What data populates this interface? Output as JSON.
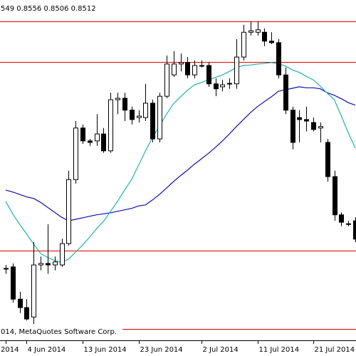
{
  "chart_data": {
    "type": "candlestick",
    "header": "549 0.8556 0.8506 0.8512",
    "footer": "014, MetaQuotes Software Corp.",
    "categories": [
      "2014",
      null,
      null,
      "4 Jun 2014",
      null,
      null,
      null,
      null,
      null,
      null,
      null,
      "13 Jun 2014",
      null,
      null,
      null,
      null,
      null,
      null,
      null,
      "23 Jun 2014",
      null,
      null,
      null,
      null,
      null,
      null,
      null,
      null,
      "2 Jul 2014",
      null,
      null,
      null,
      null,
      null,
      null,
      null,
      "11 Jul 2014",
      null,
      null,
      null,
      null,
      null,
      null,
      null,
      "21 Jul 2014",
      null,
      null,
      null,
      null,
      null,
      null
    ],
    "open": [
      0.8453,
      0.8456,
      0.8391,
      0.8374,
      0.8355,
      0.846,
      0.8463,
      0.846,
      0.846,
      0.8503,
      0.8632,
      0.8736,
      0.871,
      0.871,
      0.8724,
      0.869,
      0.8793,
      0.8796,
      0.8772,
      0.8757,
      0.8757,
      0.8786,
      0.8714,
      0.88,
      0.8843,
      0.8865,
      0.8868,
      0.8843,
      0.8862,
      0.8862,
      0.8825,
      0.8819,
      0.8825,
      0.8825,
      0.8879,
      0.8929,
      0.8929,
      0.8929,
      0.8911,
      0.8908,
      0.8843,
      0.8772,
      0.8757,
      0.8753,
      0.8747,
      0.8736,
      0.8707,
      0.8638,
      0.8561,
      0.8543,
      0.8549
    ],
    "high": [
      0.846,
      0.8463,
      0.8406,
      0.8391,
      0.8506,
      0.8477,
      0.8542,
      0.8477,
      0.8513,
      0.865,
      0.875,
      0.8743,
      0.8714,
      0.8764,
      0.8736,
      0.8807,
      0.8807,
      0.8807,
      0.8779,
      0.8772,
      0.8825,
      0.8793,
      0.8807,
      0.8882,
      0.8891,
      0.8886,
      0.8879,
      0.8872,
      0.8872,
      0.8868,
      0.8836,
      0.8833,
      0.8836,
      0.8915,
      0.8944,
      0.8951,
      0.8951,
      0.8937,
      0.8929,
      0.8915,
      0.8858,
      0.8779,
      0.8772,
      0.8779,
      0.8757,
      0.8747,
      0.8714,
      0.865,
      0.8566,
      0.8549,
      0.8556
    ],
    "low": [
      0.8442,
      0.8384,
      0.8363,
      0.8348,
      0.8341,
      0.8449,
      0.8442,
      0.8449,
      0.8456,
      0.8499,
      0.8624,
      0.8704,
      0.87,
      0.87,
      0.8686,
      0.8686,
      0.8764,
      0.875,
      0.8743,
      0.8747,
      0.875,
      0.8707,
      0.8707,
      0.8796,
      0.8839,
      0.885,
      0.8836,
      0.8836,
      0.8858,
      0.8819,
      0.88,
      0.881,
      0.8815,
      0.8815,
      0.8872,
      0.8922,
      0.8922,
      0.8901,
      0.8905,
      0.8836,
      0.8764,
      0.8693,
      0.8707,
      0.8729,
      0.8729,
      0.8707,
      0.8628,
      0.8549,
      0.8538,
      0.8538,
      0.8506
    ],
    "close": [
      0.8452,
      0.8391,
      0.8374,
      0.8351,
      0.846,
      0.8463,
      0.846,
      0.8466,
      0.8503,
      0.8632,
      0.8736,
      0.871,
      0.8707,
      0.8724,
      0.869,
      0.8793,
      0.8796,
      0.8772,
      0.8753,
      0.876,
      0.8786,
      0.8714,
      0.88,
      0.8865,
      0.8865,
      0.8868,
      0.8843,
      0.8862,
      0.8861,
      0.8825,
      0.8815,
      0.8823,
      0.8826,
      0.8879,
      0.8929,
      0.8932,
      0.8934,
      0.8911,
      0.8908,
      0.8843,
      0.8772,
      0.8707,
      0.8753,
      0.875,
      0.8733,
      0.8739,
      0.8638,
      0.8561,
      0.8546,
      0.8542,
      0.8512
    ],
    "bull_color": "#ffffff",
    "bear_color": "#000000",
    "series": [
      {
        "color": "#1010b0",
        "values": [
          0.8611,
          0.8607,
          0.8602,
          0.8597,
          0.8594,
          0.8586,
          0.8576,
          0.8566,
          0.8556,
          0.8549,
          0.8552,
          0.8555,
          0.8558,
          0.8561,
          0.8563,
          0.8565,
          0.8568,
          0.8571,
          0.8574,
          0.8579,
          0.8581,
          0.8591,
          0.8602,
          0.8615,
          0.8628,
          0.864,
          0.8651,
          0.8663,
          0.8674,
          0.8685,
          0.8697,
          0.871,
          0.8724,
          0.8739,
          0.8753,
          0.8767,
          0.8779,
          0.8789,
          0.8799,
          0.881,
          0.8813,
          0.8816,
          0.8819,
          0.8817,
          0.8817,
          0.8815,
          0.8807,
          0.8802,
          0.8795,
          0.8787,
          0.8782
        ]
      },
      {
        "color": "#20b2aa",
        "values": [
          0.8588,
          0.8563,
          0.8542,
          0.8522,
          0.8502,
          0.8483,
          0.8475,
          0.8469,
          0.8465,
          0.8472,
          0.8486,
          0.85,
          0.8516,
          0.8533,
          0.8548,
          0.8568,
          0.8588,
          0.8611,
          0.8632,
          0.8661,
          0.869,
          0.8717,
          0.874,
          0.8764,
          0.8785,
          0.8799,
          0.8812,
          0.8823,
          0.8828,
          0.8833,
          0.8838,
          0.8843,
          0.885,
          0.8858,
          0.8862,
          0.8863,
          0.8865,
          0.8866,
          0.8868,
          0.8865,
          0.8861,
          0.8853,
          0.8848,
          0.884,
          0.8833,
          0.882,
          0.8806,
          0.8793,
          0.876,
          0.8726,
          0.8696
        ]
      }
    ],
    "levels": {
      "color": "#e00000",
      "values": [
        0.8951,
        0.8869,
        0.8489,
        0.8331
      ]
    },
    "ylim": [
      0.8308,
      0.8994
    ]
  }
}
